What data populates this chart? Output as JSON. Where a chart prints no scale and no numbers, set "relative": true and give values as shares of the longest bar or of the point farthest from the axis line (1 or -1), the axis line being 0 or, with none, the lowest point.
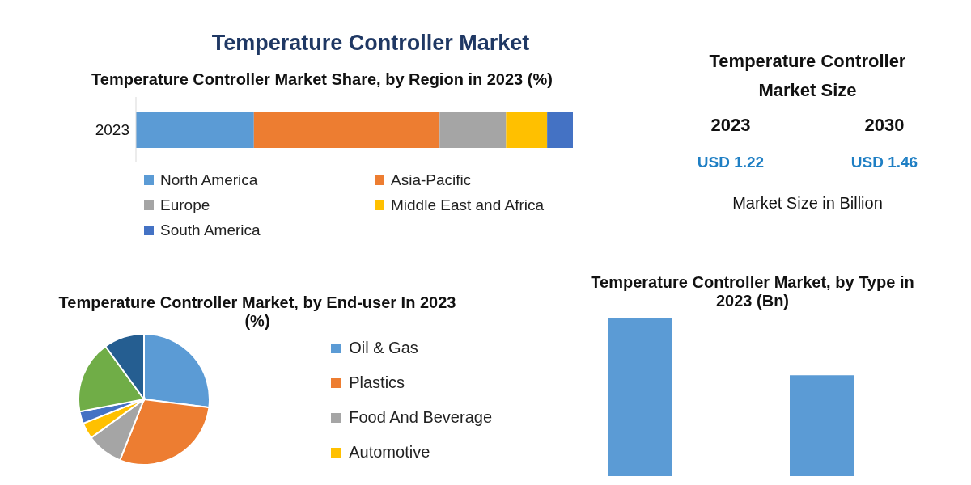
{
  "chart_data": [
    {
      "type": "bar",
      "title": "Temperature Controller Market",
      "subtitle": "Temperature Controller Market Share, by Region in 2023 (%)",
      "orientation": "horizontal",
      "stacked": true,
      "relative": true,
      "categories": [
        "2023"
      ],
      "legend": "bottom",
      "series": [
        {
          "name": "North America",
          "color": "#5b9bd5",
          "values": [
            0.27
          ]
        },
        {
          "name": "Asia-Pacific",
          "color": "#ed7d31",
          "values": [
            0.425
          ]
        },
        {
          "name": "Europe",
          "color": "#a5a5a5",
          "values": [
            0.152
          ]
        },
        {
          "name": "Middle East and Africa",
          "color": "#ffc000",
          "values": [
            0.094
          ]
        },
        {
          "name": "South America",
          "color": "#4472c4",
          "values": [
            0.059
          ]
        }
      ]
    },
    {
      "type": "other",
      "title": "Temperature Controller Market Size",
      "categories": [
        "2023",
        "2030"
      ],
      "value_labels": [
        "USD 1.22",
        "USD 1.46"
      ],
      "annotations": [
        "Market Size in Billion"
      ]
    },
    {
      "type": "pie",
      "title": "Temperature Controller Market, by End-user In 2023 (%)",
      "legend": "right",
      "categories": [
        "Oil & Gas",
        "Plastics",
        "Food And Beverage",
        "Automotive",
        null,
        null,
        null
      ],
      "values": [
        27,
        29,
        9,
        4,
        3,
        18,
        10
      ],
      "colors": [
        "#5b9bd5",
        "#ed7d31",
        "#a5a5a5",
        "#ffc000",
        "#4472c4",
        "#70ad47",
        "#255e91"
      ]
    },
    {
      "type": "bar",
      "title": "Temperature Controller Market, by Type in 2023 (Bn)",
      "relative": true,
      "categories": [
        null,
        null
      ],
      "values": [
        1,
        0.64
      ],
      "color": "#5b9bd5"
    }
  ]
}
